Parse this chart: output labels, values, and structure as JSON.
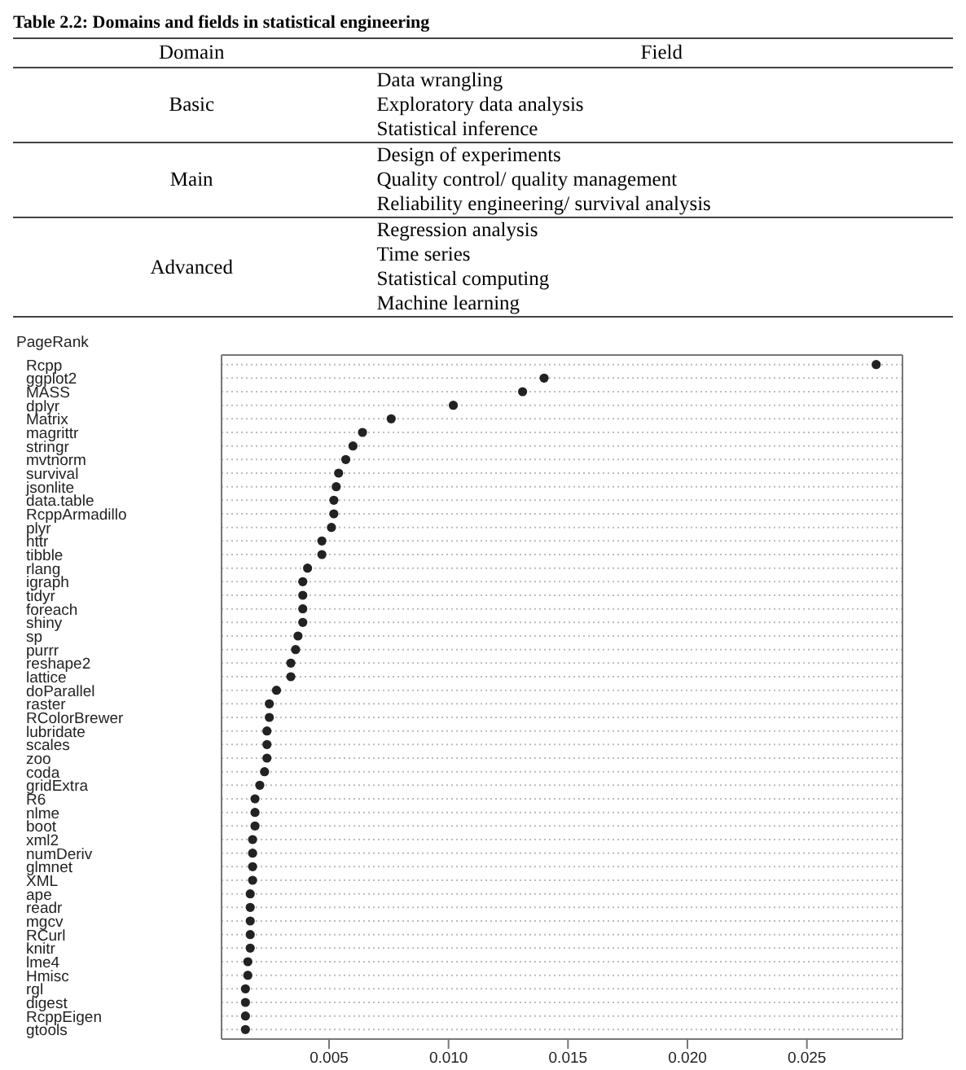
{
  "chart_data": [
    {
      "type": "other",
      "title": "Table 2.2: Domains and fields in statistical engineering",
      "categories": [
        "Domain",
        "Field"
      ],
      "cell_labels": [
        [
          "Basic",
          "Data wrangling"
        ],
        [
          null,
          "Exploratory data analysis"
        ],
        [
          null,
          "Statistical inference"
        ],
        [
          "Main",
          "Design of experiments"
        ],
        [
          null,
          "Quality control/ quality management"
        ],
        [
          null,
          "Reliability engineering/ survival analysis"
        ],
        [
          "Advanced",
          "Regression analysis"
        ],
        [
          null,
          "Time series"
        ],
        [
          null,
          "Statistical computing"
        ],
        [
          null,
          "Machine learning"
        ]
      ]
    },
    {
      "type": "scatter",
      "orientation": "horizontal",
      "ylabel": "PageRank",
      "color": "#222222",
      "marker": "circle",
      "grid": "y",
      "categories": [
        "Rcpp",
        "ggplot2",
        "MASS",
        "dplyr",
        "Matrix",
        "magrittr",
        "stringr",
        "mvtnorm",
        "survival",
        "jsonlite",
        "data.table",
        "RcppArmadillo",
        "plyr",
        "httr",
        "tibble",
        "rlang",
        "igraph",
        "tidyr",
        "foreach",
        "shiny",
        "sp",
        "purrr",
        "reshape2",
        "lattice",
        "doParallel",
        "raster",
        "RColorBrewer",
        "lubridate",
        "scales",
        "zoo",
        "coda",
        "gridExtra",
        "R6",
        "nlme",
        "boot",
        "xml2",
        "numDeriv",
        "glmnet",
        "XML",
        "ape",
        "readr",
        "mgcv",
        "RCurl",
        "knitr",
        "lme4",
        "Hmisc",
        "rgl",
        "digest",
        "RcppEigen",
        "gtools"
      ],
      "values": [
        0.0279,
        0.014,
        0.0131,
        0.0102,
        0.0076,
        0.0064,
        0.006,
        0.0057,
        0.0054,
        0.0053,
        0.0052,
        0.0052,
        0.0051,
        0.0047,
        0.0047,
        0.0041,
        0.0039,
        0.0039,
        0.0039,
        0.0039,
        0.0037,
        0.0036,
        0.0034,
        0.0034,
        0.0028,
        0.0025,
        0.0025,
        0.0024,
        0.0024,
        0.0024,
        0.0023,
        0.0021,
        0.0019,
        0.0019,
        0.0019,
        0.0018,
        0.0018,
        0.0018,
        0.0018,
        0.0017,
        0.0017,
        0.0017,
        0.0017,
        0.0017,
        0.0016,
        0.0016,
        0.0015,
        0.0015,
        0.0015,
        0.0015
      ],
      "xlim": [
        0.0005,
        0.029
      ],
      "xticks": [
        0.005,
        {
          "value": 0.01,
          "label": "0.010"
        },
        0.015,
        {
          "value": 0.02,
          "label": "0.020"
        },
        0.025
      ]
    }
  ]
}
